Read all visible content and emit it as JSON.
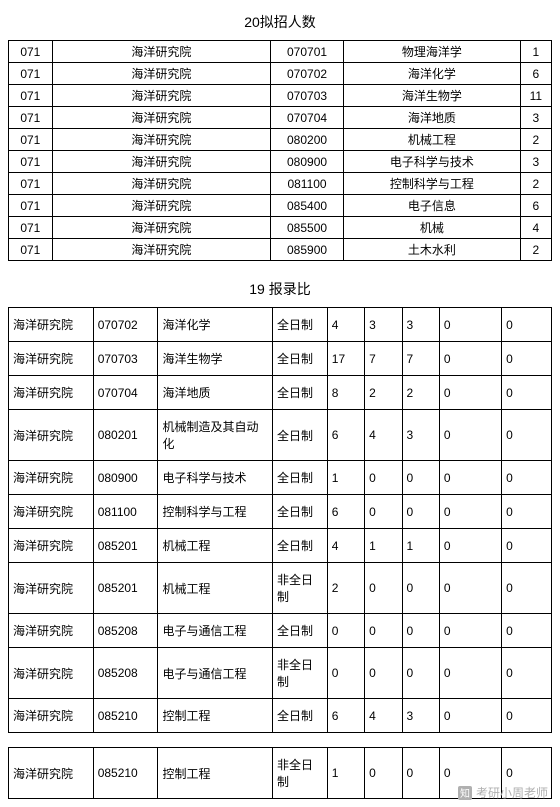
{
  "title1": "20拟招人数",
  "title2": "19 报录比",
  "watermark": "考研小周老师",
  "zhi": "知",
  "t1_col_widths": [
    42,
    210,
    70,
    170,
    30
  ],
  "t2_col_widths": [
    68,
    52,
    92,
    44,
    30,
    30,
    30,
    50,
    40
  ],
  "table1": [
    [
      "071",
      "海洋研究院",
      "070701",
      "物理海洋学",
      "1"
    ],
    [
      "071",
      "海洋研究院",
      "070702",
      "海洋化学",
      "6"
    ],
    [
      "071",
      "海洋研究院",
      "070703",
      "海洋生物学",
      "11"
    ],
    [
      "071",
      "海洋研究院",
      "070704",
      "海洋地质",
      "3"
    ],
    [
      "071",
      "海洋研究院",
      "080200",
      "机械工程",
      "2"
    ],
    [
      "071",
      "海洋研究院",
      "080900",
      "电子科学与技术",
      "3"
    ],
    [
      "071",
      "海洋研究院",
      "081100",
      "控制科学与工程",
      "2"
    ],
    [
      "071",
      "海洋研究院",
      "085400",
      "电子信息",
      "6"
    ],
    [
      "071",
      "海洋研究院",
      "085500",
      "机械",
      "4"
    ],
    [
      "071",
      "海洋研究院",
      "085900",
      "土木水利",
      "2"
    ]
  ],
  "table2": [
    [
      "海洋研究院",
      "070702",
      "海洋化学",
      "全日制",
      "4",
      "3",
      "3",
      "0",
      "0"
    ],
    [
      "海洋研究院",
      "070703",
      "海洋生物学",
      "全日制",
      "17",
      "7",
      "7",
      "0",
      "0"
    ],
    [
      "海洋研究院",
      "070704",
      "海洋地质",
      "全日制",
      "8",
      "2",
      "2",
      "0",
      "0"
    ],
    [
      "海洋研究院",
      "080201",
      "机械制造及其自动化",
      "全日制",
      "6",
      "4",
      "3",
      "0",
      "0"
    ],
    [
      "海洋研究院",
      "080900",
      "电子科学与技术",
      "全日制",
      "1",
      "0",
      "0",
      "0",
      "0"
    ],
    [
      "海洋研究院",
      "081100",
      "控制科学与工程",
      "全日制",
      "6",
      "0",
      "0",
      "0",
      "0"
    ],
    [
      "海洋研究院",
      "085201",
      "机械工程",
      "全日制",
      "4",
      "1",
      "1",
      "0",
      "0"
    ],
    [
      "海洋研究院",
      "085201",
      "机械工程",
      "非全日制",
      "2",
      "0",
      "0",
      "0",
      "0"
    ],
    [
      "海洋研究院",
      "085208",
      "电子与通信工程",
      "全日制",
      "0",
      "0",
      "0",
      "0",
      "0"
    ],
    [
      "海洋研究院",
      "085208",
      "电子与通信工程",
      "非全日制",
      "0",
      "0",
      "0",
      "0",
      "0"
    ],
    [
      "海洋研究院",
      "085210",
      "控制工程",
      "全日制",
      "6",
      "4",
      "3",
      "0",
      "0"
    ]
  ],
  "table2_extra": [
    [
      "海洋研究院",
      "085210",
      "控制工程",
      "非全日制",
      "1",
      "0",
      "0",
      "0",
      "0"
    ]
  ]
}
